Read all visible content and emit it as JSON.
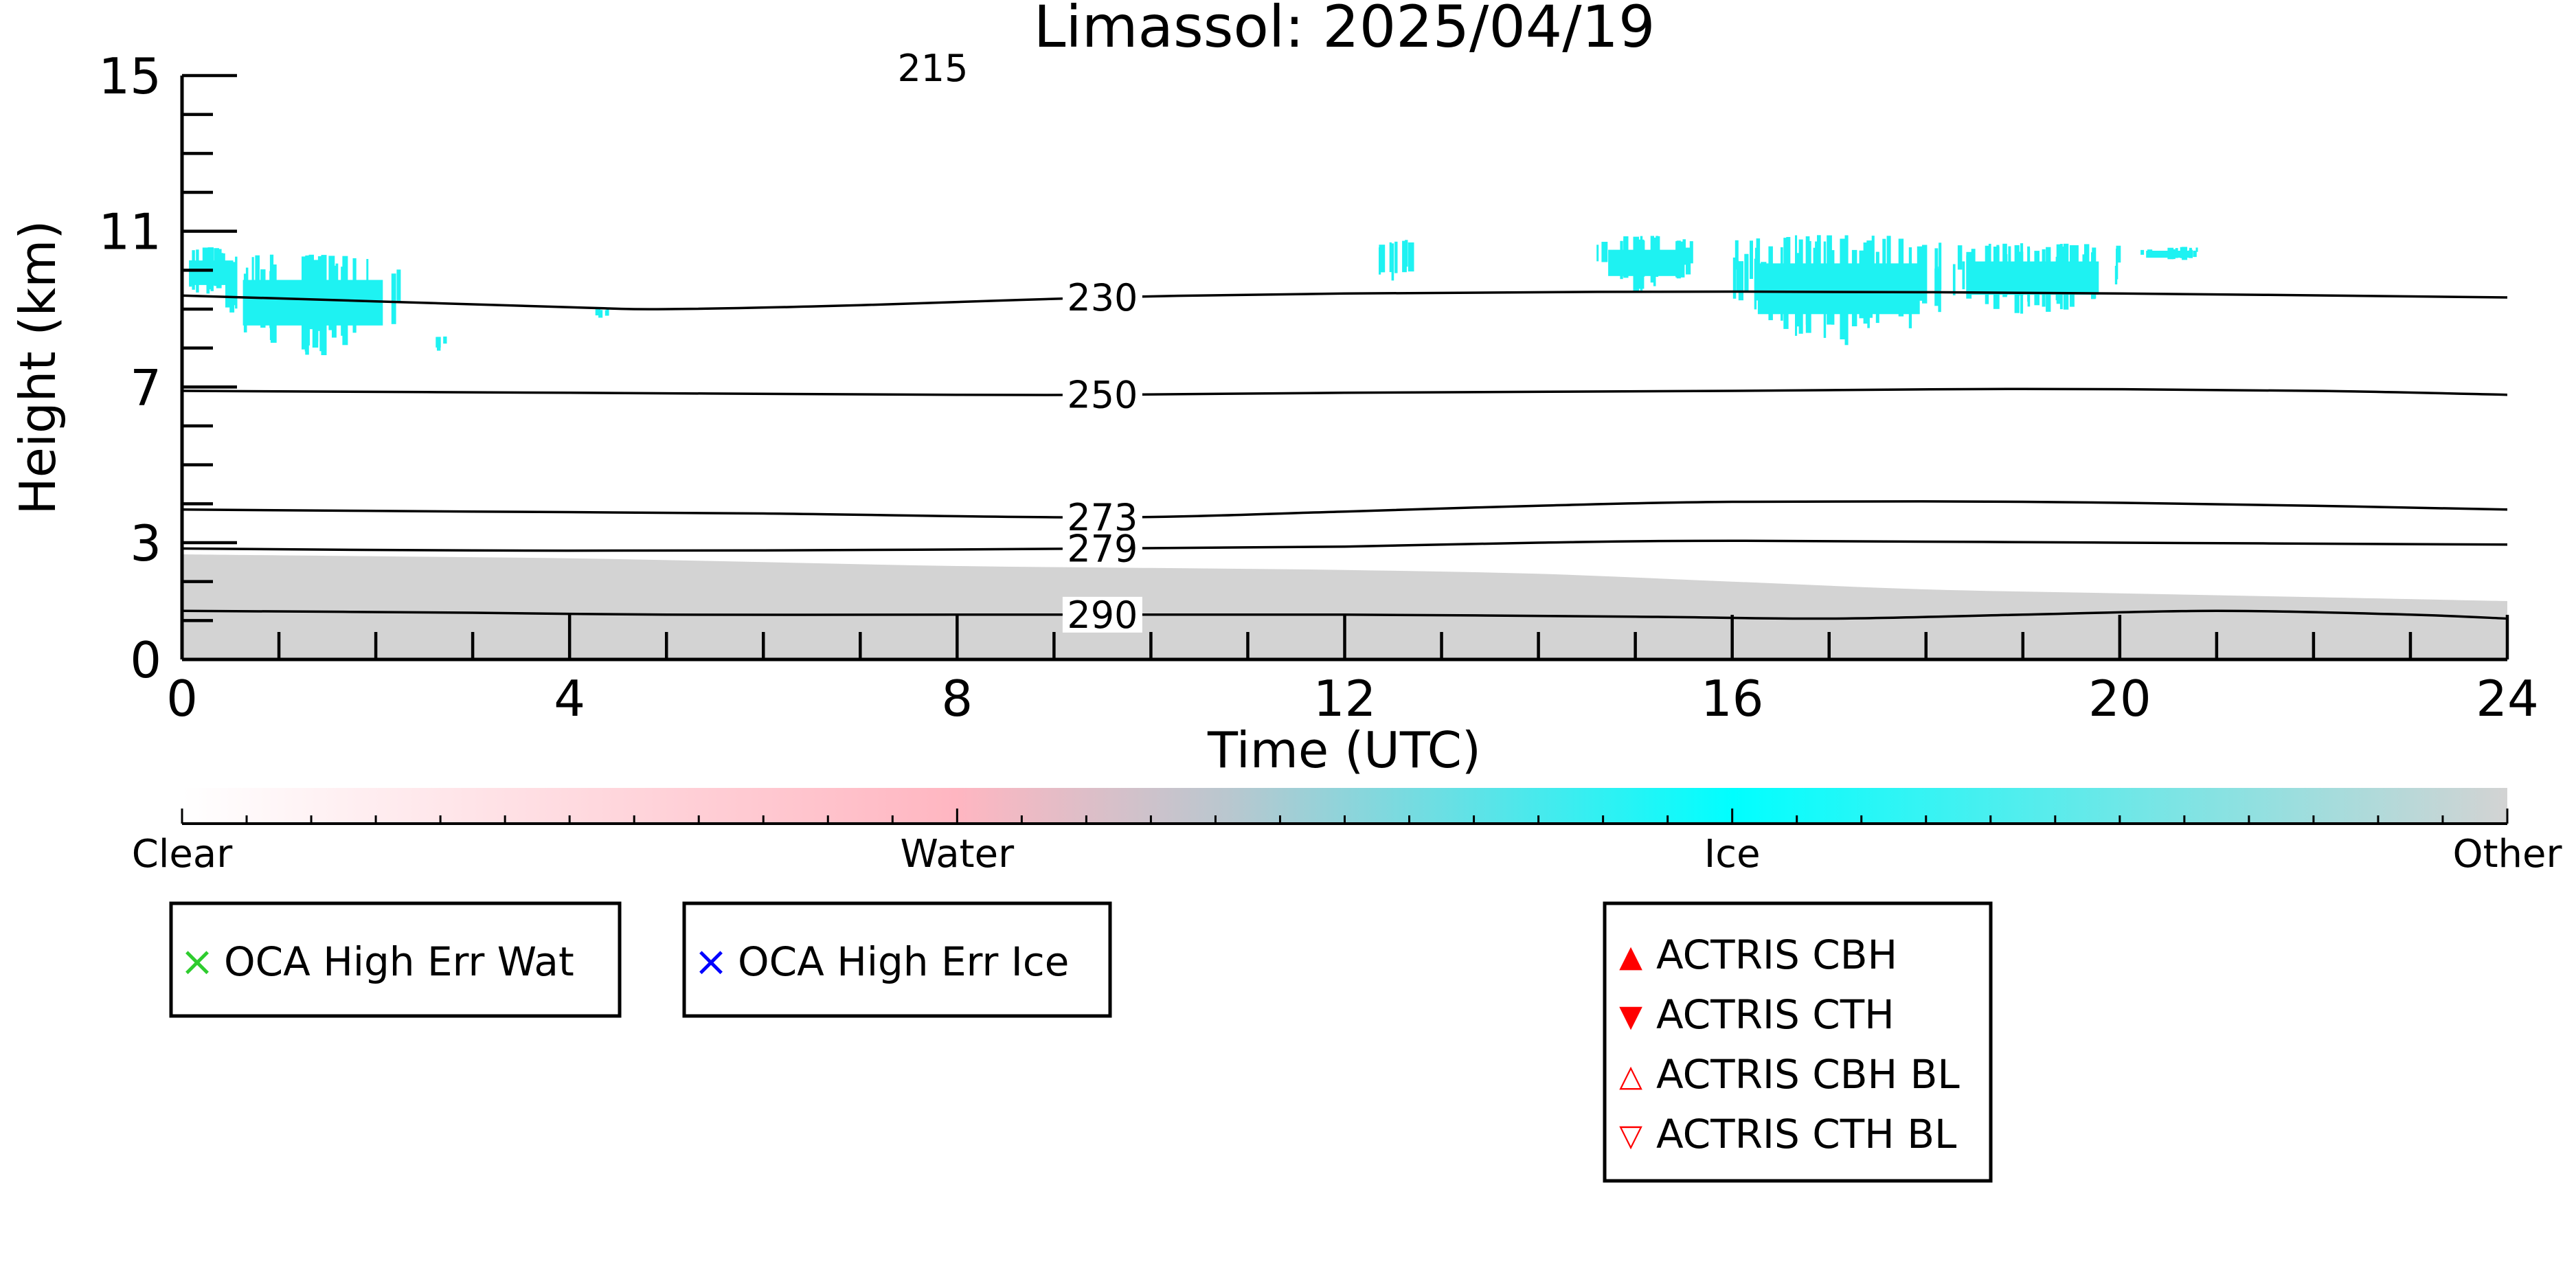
{
  "chart_data": {
    "type": "heatmap",
    "title": "Limassol: 2025/04/19",
    "xlabel": "Time (UTC)",
    "ylabel": "Height (km)",
    "xlim": [
      0,
      24
    ],
    "ylim": [
      0,
      15
    ],
    "x_ticks": [
      0,
      4,
      8,
      12,
      16,
      20,
      24
    ],
    "y_ticks": [
      0,
      3,
      7,
      11,
      15
    ],
    "partial_label_top": "215",
    "contours": [
      {
        "label": "230",
        "label_x": 9.5,
        "points": [
          [
            0,
            9.35
          ],
          [
            2,
            9.2
          ],
          [
            4,
            9.05
          ],
          [
            5,
            9.0
          ],
          [
            7,
            9.1
          ],
          [
            9.5,
            9.3
          ],
          [
            12,
            9.4
          ],
          [
            16,
            9.45
          ],
          [
            20,
            9.4
          ],
          [
            24,
            9.3
          ]
        ]
      },
      {
        "label": "250",
        "label_x": 9.5,
        "points": [
          [
            0,
            6.9
          ],
          [
            4,
            6.85
          ],
          [
            8,
            6.8
          ],
          [
            9.5,
            6.8
          ],
          [
            12,
            6.85
          ],
          [
            16,
            6.9
          ],
          [
            19,
            6.95
          ],
          [
            22,
            6.9
          ],
          [
            24,
            6.8
          ]
        ]
      },
      {
        "label": "273",
        "label_x": 9.5,
        "points": [
          [
            0,
            3.85
          ],
          [
            3,
            3.8
          ],
          [
            6,
            3.75
          ],
          [
            9.5,
            3.65
          ],
          [
            12,
            3.8
          ],
          [
            14,
            3.95
          ],
          [
            16,
            4.05
          ],
          [
            19,
            4.05
          ],
          [
            22,
            3.95
          ],
          [
            24,
            3.85
          ]
        ]
      },
      {
        "label": "279",
        "label_x": 9.5,
        "points": [
          [
            0,
            2.85
          ],
          [
            3,
            2.8
          ],
          [
            6,
            2.8
          ],
          [
            9.5,
            2.85
          ],
          [
            12,
            2.9
          ],
          [
            14,
            3.0
          ],
          [
            16,
            3.05
          ],
          [
            20,
            3.0
          ],
          [
            24,
            2.95
          ]
        ]
      },
      {
        "label": "290",
        "label_x": 9.5,
        "points": [
          [
            0,
            1.25
          ],
          [
            3,
            1.2
          ],
          [
            5,
            1.15
          ],
          [
            8,
            1.15
          ],
          [
            9.5,
            1.15
          ],
          [
            12,
            1.15
          ],
          [
            15,
            1.1
          ],
          [
            17,
            1.05
          ],
          [
            19,
            1.15
          ],
          [
            21,
            1.25
          ],
          [
            23,
            1.15
          ],
          [
            24,
            1.05
          ]
        ]
      }
    ],
    "ice_clouds": [
      {
        "x_start": 0.0,
        "x_end": 0.6,
        "y_bottom": 9.2,
        "y_top": 10.6
      },
      {
        "x_start": 0.4,
        "x_end": 2.3,
        "y_bottom": 7.8,
        "y_top": 10.4
      },
      {
        "x_start": 2.6,
        "x_end": 2.7,
        "y_bottom": 7.9,
        "y_top": 8.3
      },
      {
        "x_start": 4.2,
        "x_end": 4.4,
        "y_bottom": 8.7,
        "y_top": 9.0
      },
      {
        "x_start": 12.3,
        "x_end": 12.7,
        "y_bottom": 9.6,
        "y_top": 10.8
      },
      {
        "x_start": 14.6,
        "x_end": 15.6,
        "y_bottom": 9.4,
        "y_top": 10.9
      },
      {
        "x_start": 16.0,
        "x_end": 18.2,
        "y_bottom": 8.0,
        "y_top": 10.9
      },
      {
        "x_start": 18.2,
        "x_end": 20.0,
        "y_bottom": 8.8,
        "y_top": 10.7
      },
      {
        "x_start": 20.2,
        "x_end": 20.8,
        "y_bottom": 10.2,
        "y_top": 10.6
      }
    ],
    "other_layer": [
      [
        0,
        2.7
      ],
      [
        2,
        2.65
      ],
      [
        4,
        2.6
      ],
      [
        6,
        2.5
      ],
      [
        8,
        2.4
      ],
      [
        10,
        2.35
      ],
      [
        12,
        2.3
      ],
      [
        14,
        2.2
      ],
      [
        16,
        2.0
      ],
      [
        18,
        1.8
      ],
      [
        20,
        1.7
      ],
      [
        22,
        1.6
      ],
      [
        24,
        1.5
      ]
    ],
    "colorbar": {
      "labels": [
        "Clear",
        "Water",
        "Ice",
        "Other"
      ],
      "positions": [
        0,
        1,
        2,
        3
      ],
      "colors": [
        "#ffffff",
        "#ffb6c1",
        "#00ffff",
        "#d3d3d3"
      ]
    },
    "legends": {
      "oca_wat": {
        "symbol": "×",
        "label": "OCA High Err Wat",
        "color": "#2ecc2e"
      },
      "oca_ice": {
        "symbol": "×",
        "label": "OCA High Err Ice",
        "color": "#0000ff"
      },
      "actris": [
        {
          "symbol": "▲",
          "label": "ACTRIS CBH",
          "color": "#ff0000"
        },
        {
          "symbol": "▼",
          "label": "ACTRIS CTH",
          "color": "#ff0000"
        },
        {
          "symbol": "△",
          "label": "ACTRIS CBH BL",
          "color": "#ff0000"
        },
        {
          "symbol": "▽",
          "label": "ACTRIS CTH BL",
          "color": "#ff0000"
        }
      ]
    },
    "colors": {
      "ice": "#1ef2f2",
      "other": "#d3d3d3",
      "axis": "#000000"
    }
  }
}
